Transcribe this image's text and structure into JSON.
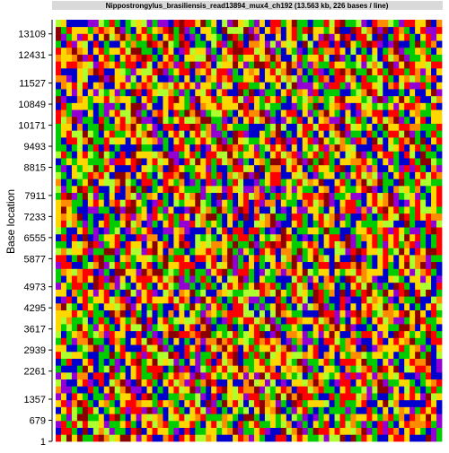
{
  "chart_data": {
    "type": "heatmap",
    "title": "Nippostrongylus_brasiliensis_read13894_mux4_ch192 (13.563 kb, 226 bases / line)",
    "ylabel": "Base location",
    "xlabel": "",
    "bases_per_line": 226,
    "total_length_kb": 13.563,
    "y_ticks": [
      1,
      679,
      1357,
      2261,
      2939,
      3617,
      4295,
      4973,
      5877,
      6555,
      7233,
      7911,
      8815,
      9493,
      10171,
      10849,
      11527,
      12431,
      13109
    ],
    "ylim": [
      1,
      13563
    ],
    "base_colors": {
      "A": "#00cc00",
      "C": "#0000cc",
      "G": "#ffd700",
      "T": "#ff0000",
      "R": "#8b0000",
      "Y": "#9400d3",
      "S": "#adff2f",
      "W": "#ff8c00",
      "N": "#c0c0c0"
    },
    "grid": false,
    "legend": "none"
  }
}
